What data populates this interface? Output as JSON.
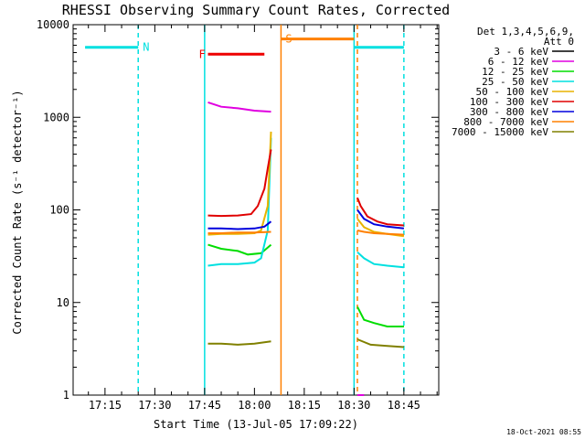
{
  "chart_data": {
    "type": "line",
    "title": "RHESSI Observing Summary Count Rates, Corrected",
    "xlabel": "Start Time (13-Jul-05 17:09:22)",
    "ylabel": "Corrected Count Rate (s⁻¹ detector⁻¹)",
    "y_scale": "log",
    "ylim": [
      1,
      10000
    ],
    "xlim_minutes": [
      17.09,
      18.925
    ],
    "x_ticks": [
      "17:15",
      "17:30",
      "17:45",
      "18:00",
      "18:15",
      "18:30",
      "18:45"
    ],
    "y_ticks": [
      "1",
      "10",
      "100",
      "1000",
      "10000"
    ],
    "legend_header": [
      "Det 1,3,4,5,6,9,",
      "Att 0"
    ],
    "legend_placement": "right",
    "series": [
      {
        "name": "3 - 6 keV",
        "color": "#000000",
        "segments": []
      },
      {
        "name": "6 - 12 keV",
        "color": "#e000e0",
        "segments": [
          {
            "x": [
              "17:46",
              "17:50",
              "17:55",
              "18:00",
              "18:05"
            ],
            "y": [
              1450,
              1300,
              1250,
              1180,
              1150
            ]
          },
          {
            "x": [
              "18:31",
              "18:32",
              "18:33"
            ],
            "y": [
              1,
              1,
              1
            ]
          }
        ]
      },
      {
        "name": "12 - 25 keV",
        "color": "#00dd00",
        "segments": [
          {
            "x": [
              "17:46",
              "17:50",
              "17:55",
              "17:58",
              "18:02",
              "18:05"
            ],
            "y": [
              42,
              38,
              36,
              33,
              34,
              42
            ]
          },
          {
            "x": [
              "18:31",
              "18:33",
              "18:36",
              "18:40",
              "18:45"
            ],
            "y": [
              9,
              6.5,
              6,
              5.5,
              5.5
            ]
          }
        ]
      },
      {
        "name": "25 - 50 keV",
        "color": "#00e0e0",
        "segments": [
          {
            "x": [
              "17:46",
              "17:50",
              "17:55",
              "18:00",
              "18:02",
              "18:04",
              "18:05"
            ],
            "y": [
              25,
              26,
              26,
              27,
              30,
              60,
              600
            ]
          },
          {
            "x": [
              "18:31",
              "18:33",
              "18:36",
              "18:40",
              "18:45"
            ],
            "y": [
              35,
              30,
              26,
              25,
              24
            ]
          }
        ]
      },
      {
        "name": "50 - 100 keV",
        "color": "#e8b400",
        "segments": [
          {
            "x": [
              "17:46",
              "17:50",
              "17:55",
              "18:00",
              "18:02",
              "18:04",
              "18:05"
            ],
            "y": [
              54,
              55,
              55,
              56,
              60,
              110,
              700
            ]
          },
          {
            "x": [
              "18:31",
              "18:33",
              "18:36",
              "18:40",
              "18:45"
            ],
            "y": [
              80,
              65,
              58,
              55,
              52
            ]
          }
        ]
      },
      {
        "name": "100 - 300 keV",
        "color": "#e00000",
        "segments": [
          {
            "x": [
              "17:46",
              "17:50",
              "17:55",
              "17:59",
              "18:01",
              "18:03",
              "18:04",
              "18:05"
            ],
            "y": [
              87,
              86,
              87,
              90,
              110,
              170,
              280,
              450
            ]
          },
          {
            "x": [
              "18:31",
              "18:32",
              "18:34",
              "18:37",
              "18:40",
              "18:45"
            ],
            "y": [
              135,
              110,
              85,
              75,
              70,
              68
            ]
          }
        ]
      },
      {
        "name": "300 - 800 keV",
        "color": "#0000dd",
        "segments": [
          {
            "x": [
              "17:46",
              "17:50",
              "17:55",
              "18:00",
              "18:03",
              "18:05"
            ],
            "y": [
              63,
              63,
              62,
              63,
              66,
              75
            ]
          },
          {
            "x": [
              "18:31",
              "18:33",
              "18:36",
              "18:40",
              "18:45"
            ],
            "y": [
              100,
              80,
              70,
              66,
              63
            ]
          }
        ]
      },
      {
        "name": "800 - 7000 keV",
        "color": "#ff8000",
        "segments": [
          {
            "x": [
              "17:46",
              "17:50",
              "17:55",
              "18:00",
              "18:05"
            ],
            "y": [
              56,
              56,
              57,
              57,
              58
            ]
          },
          {
            "x": [
              "18:31",
              "18:33",
              "18:36",
              "18:40",
              "18:45"
            ],
            "y": [
              60,
              58,
              56,
              55,
              54
            ]
          }
        ]
      },
      {
        "name": "7000 - 15000 keV",
        "color": "#808000",
        "segments": [
          {
            "x": [
              "17:46",
              "17:50",
              "17:55",
              "18:00",
              "18:05"
            ],
            "y": [
              3.6,
              3.6,
              3.5,
              3.6,
              3.8
            ]
          },
          {
            "x": [
              "18:31",
              "18:35",
              "18:40",
              "18:45"
            ],
            "y": [
              4,
              3.5,
              3.4,
              3.3
            ]
          }
        ]
      }
    ],
    "flags": [
      {
        "label": "N",
        "color": "#00e0e0",
        "y": 5700,
        "spans": [
          [
            "17:09",
            "17:25"
          ],
          [
            "18:30",
            "18:45"
          ]
        ],
        "label_at": "17:25"
      },
      {
        "label": "F",
        "color": "#ee0000",
        "y": 4800,
        "spans": [
          [
            "17:46",
            "18:03"
          ]
        ],
        "label_at": "17:46"
      },
      {
        "label": "S",
        "color": "#ff8000",
        "y": 7000,
        "spans": [
          [
            "18:08",
            "18:30"
          ]
        ],
        "label_at": "18:08"
      }
    ],
    "vlines": [
      {
        "x": "17:25",
        "color": "#00e0e0",
        "style": "dashed"
      },
      {
        "x": "17:45",
        "color": "#00e0e0",
        "style": "solid"
      },
      {
        "x": "18:08",
        "color": "#ff8000",
        "style": "solid"
      },
      {
        "x": "18:30",
        "color": "#00e0e0",
        "style": "solid"
      },
      {
        "x": "18:31",
        "color": "#ff8000",
        "style": "dashed"
      },
      {
        "x": "18:45",
        "color": "#00e0e0",
        "style": "dashed"
      }
    ],
    "footer": "18-Oct-2021 08:55"
  }
}
